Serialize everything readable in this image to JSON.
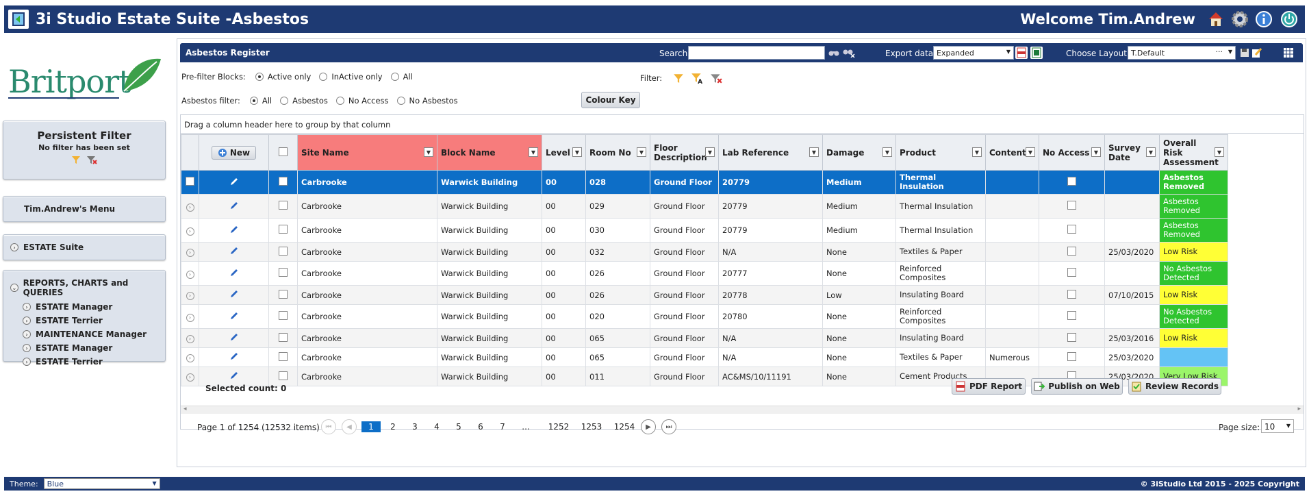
{
  "app": {
    "title": "3i Studio Estate Suite -Asbestos",
    "welcome": "Welcome Tim.Andrew"
  },
  "brand": {
    "logo_text": "Britport",
    "primary": "#1e3a73",
    "accent": "#2a8a6e",
    "selected": "#0d6ec7"
  },
  "sidebar": {
    "persistent_filter": {
      "title": "Persistent Filter",
      "subtitle": "No filter has been set"
    },
    "user_menu": "Tim.Andrew's Menu",
    "estate_suite": "ESTATE Suite",
    "reports": {
      "title": "REPORTS, CHARTS and QUERIES",
      "items": [
        {
          "label": "ESTATE Manager"
        },
        {
          "label": "ESTATE Terrier"
        },
        {
          "label": "MAINTENANCE Manager"
        },
        {
          "label": "ESTATE Manager"
        },
        {
          "label": "ESTATE Terrier"
        }
      ]
    }
  },
  "register": {
    "title": "Asbestos Register",
    "search_label": "Search:",
    "search_value": "",
    "export_label": "Export data:",
    "export_value": "Expanded",
    "layout_label": "Choose Layout:",
    "layout_value": "T.Default",
    "layout_ellipsis": "···"
  },
  "filters": {
    "prefilter_label": "Pre-filter Blocks:",
    "prefilter_options": [
      {
        "label": "Active only",
        "selected": true
      },
      {
        "label": "InActive only",
        "selected": false
      },
      {
        "label": "All",
        "selected": false
      }
    ],
    "filter_label": "Filter:",
    "asbestos_label": "Asbestos filter:",
    "asbestos_options": [
      {
        "label": "All",
        "selected": true
      },
      {
        "label": "Asbestos",
        "selected": false
      },
      {
        "label": "No Access",
        "selected": false
      },
      {
        "label": "No Asbestos",
        "selected": false
      }
    ],
    "colour_key": "Colour Key"
  },
  "grid": {
    "group_hint": "Drag a column header here to group by that column",
    "new_button": "New",
    "columns": [
      "Site Name",
      "Block Name",
      "Level",
      "Room No",
      "Floor Description",
      "Lab Reference",
      "Damage",
      "Product",
      "Content",
      "No Access",
      "Survey Date",
      "Overall Risk Assessment"
    ],
    "rows": [
      {
        "site": "Carbrooke",
        "block": "Warwick Building",
        "level": "00",
        "room": "028",
        "floor": "Ground Floor",
        "lab": "20779",
        "damage": "Medium",
        "product": "Thermal Insulation",
        "content": "",
        "date": "",
        "risk": "Asbestos Removed",
        "risk_color": "green"
      },
      {
        "site": "Carbrooke",
        "block": "Warwick Building",
        "level": "00",
        "room": "029",
        "floor": "Ground Floor",
        "lab": "20779",
        "damage": "Medium",
        "product": "Thermal Insulation",
        "content": "",
        "date": "",
        "risk": "Asbestos Removed",
        "risk_color": "green"
      },
      {
        "site": "Carbrooke",
        "block": "Warwick Building",
        "level": "00",
        "room": "030",
        "floor": "Ground Floor",
        "lab": "20779",
        "damage": "Medium",
        "product": "Thermal Insulation",
        "content": "",
        "date": "",
        "risk": "Asbestos Removed",
        "risk_color": "green"
      },
      {
        "site": "Carbrooke",
        "block": "Warwick Building",
        "level": "00",
        "room": "032",
        "floor": "Ground Floor",
        "lab": "N/A",
        "damage": "None",
        "product": "Textiles & Paper",
        "content": "",
        "date": "25/03/2020",
        "risk": "Low Risk",
        "risk_color": "yellow"
      },
      {
        "site": "Carbrooke",
        "block": "Warwick Building",
        "level": "00",
        "room": "026",
        "floor": "Ground Floor",
        "lab": "20777",
        "damage": "None",
        "product": "Reinforced Composites",
        "content": "",
        "date": "",
        "risk": "No Asbestos Detected",
        "risk_color": "green"
      },
      {
        "site": "Carbrooke",
        "block": "Warwick Building",
        "level": "00",
        "room": "026",
        "floor": "Ground Floor",
        "lab": "20778",
        "damage": "Low",
        "product": "Insulating Board",
        "content": "",
        "date": "07/10/2015",
        "risk": "Low Risk",
        "risk_color": "yellow"
      },
      {
        "site": "Carbrooke",
        "block": "Warwick Building",
        "level": "00",
        "room": "020",
        "floor": "Ground Floor",
        "lab": "20780",
        "damage": "None",
        "product": "Reinforced Composites",
        "content": "",
        "date": "",
        "risk": "No Asbestos Detected",
        "risk_color": "green"
      },
      {
        "site": "Carbrooke",
        "block": "Warwick Building",
        "level": "00",
        "room": "065",
        "floor": "Ground Floor",
        "lab": "N/A",
        "damage": "None",
        "product": "Insulating Board",
        "content": "",
        "date": "25/03/2016",
        "risk": "Low Risk",
        "risk_color": "yellow"
      },
      {
        "site": "Carbrooke",
        "block": "Warwick Building",
        "level": "00",
        "room": "065",
        "floor": "Ground Floor",
        "lab": "N/A",
        "damage": "None",
        "product": "Textiles & Paper",
        "content": "Numerous",
        "date": "25/03/2020",
        "risk": "",
        "risk_color": "blue"
      },
      {
        "site": "Carbrooke",
        "block": "Warwick Building",
        "level": "00",
        "room": "011",
        "floor": "Ground Floor",
        "lab": "AC&MS/10/11191",
        "damage": "None",
        "product": "Cement Products",
        "content": "",
        "date": "25/03/2020",
        "risk": "Very Low Risk",
        "risk_color": "lime"
      }
    ],
    "selected_count": "Selected count: 0",
    "buttons": {
      "pdf": "PDF Report",
      "publish": "Publish on Web",
      "review": "Review Records"
    }
  },
  "pager": {
    "info": "Page 1 of 1254 (12532 items)",
    "pages": [
      "1",
      "2",
      "3",
      "4",
      "5",
      "6",
      "7",
      "...",
      "1252",
      "1253",
      "1254"
    ],
    "page_size_label": "Page size:",
    "page_size": "10"
  },
  "footer": {
    "theme_label": "Theme:",
    "theme_value": "Blue",
    "copyright": "© 3iStudio Ltd 2015 - 2025 Copyright"
  }
}
